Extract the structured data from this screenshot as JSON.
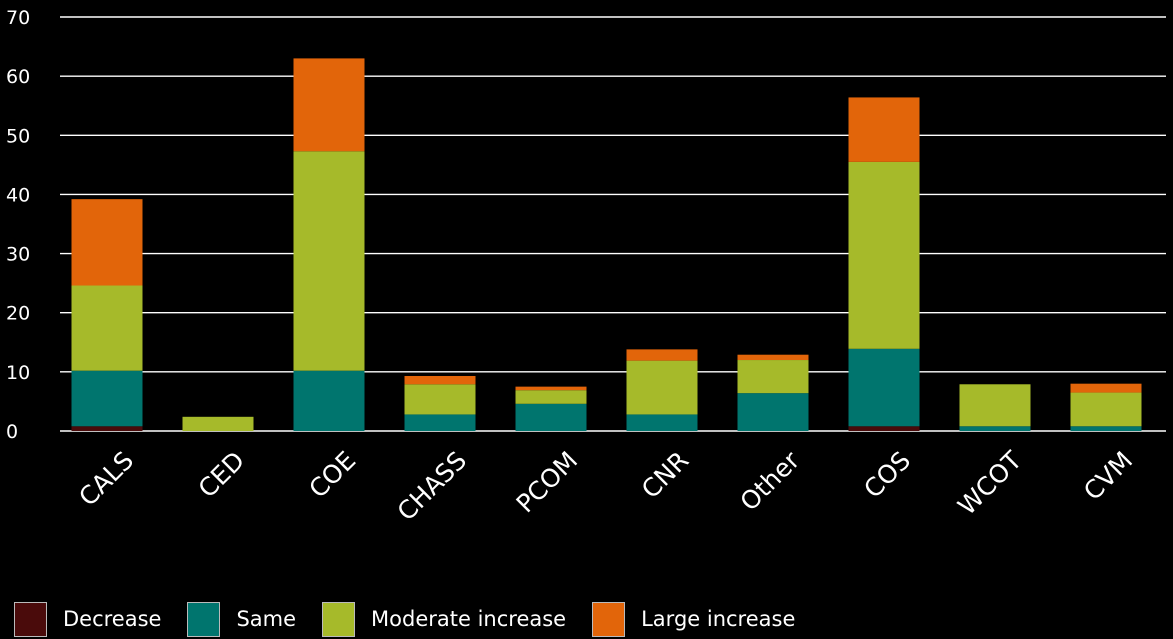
{
  "chart_data": {
    "type": "bar",
    "stacked": true,
    "title": "",
    "xlabel": "",
    "ylabel": "",
    "ylim": [
      0,
      70
    ],
    "yticks": [
      0,
      10,
      20,
      30,
      40,
      50,
      60,
      70
    ],
    "grid": true,
    "legend_position": "bottom-left",
    "categories": [
      "CALS",
      "CED",
      "COE",
      "CHASS",
      "PCOM",
      "CNR",
      "Other",
      "COS",
      "WCOT",
      "CVM"
    ],
    "series": [
      {
        "name": "Decrease",
        "color": "#4a0b0b",
        "values": [
          0.8,
          0,
          0,
          0,
          0,
          0,
          0,
          0.8,
          0,
          0
        ]
      },
      {
        "name": "Same",
        "color": "#00756e",
        "values": [
          9.4,
          0,
          10.2,
          2.8,
          4.6,
          2.8,
          6.4,
          13.1,
          0.8,
          0.8
        ]
      },
      {
        "name": "Moderate increase",
        "color": "#a6ba2a",
        "values": [
          14.4,
          2.4,
          37.1,
          5.1,
          2.3,
          9.1,
          5.6,
          31.6,
          7.1,
          5.7
        ]
      },
      {
        "name": "Large increase",
        "color": "#e2650a",
        "values": [
          14.6,
          0,
          15.7,
          1.4,
          0.6,
          1.9,
          0.9,
          10.9,
          0,
          1.5
        ]
      }
    ]
  }
}
